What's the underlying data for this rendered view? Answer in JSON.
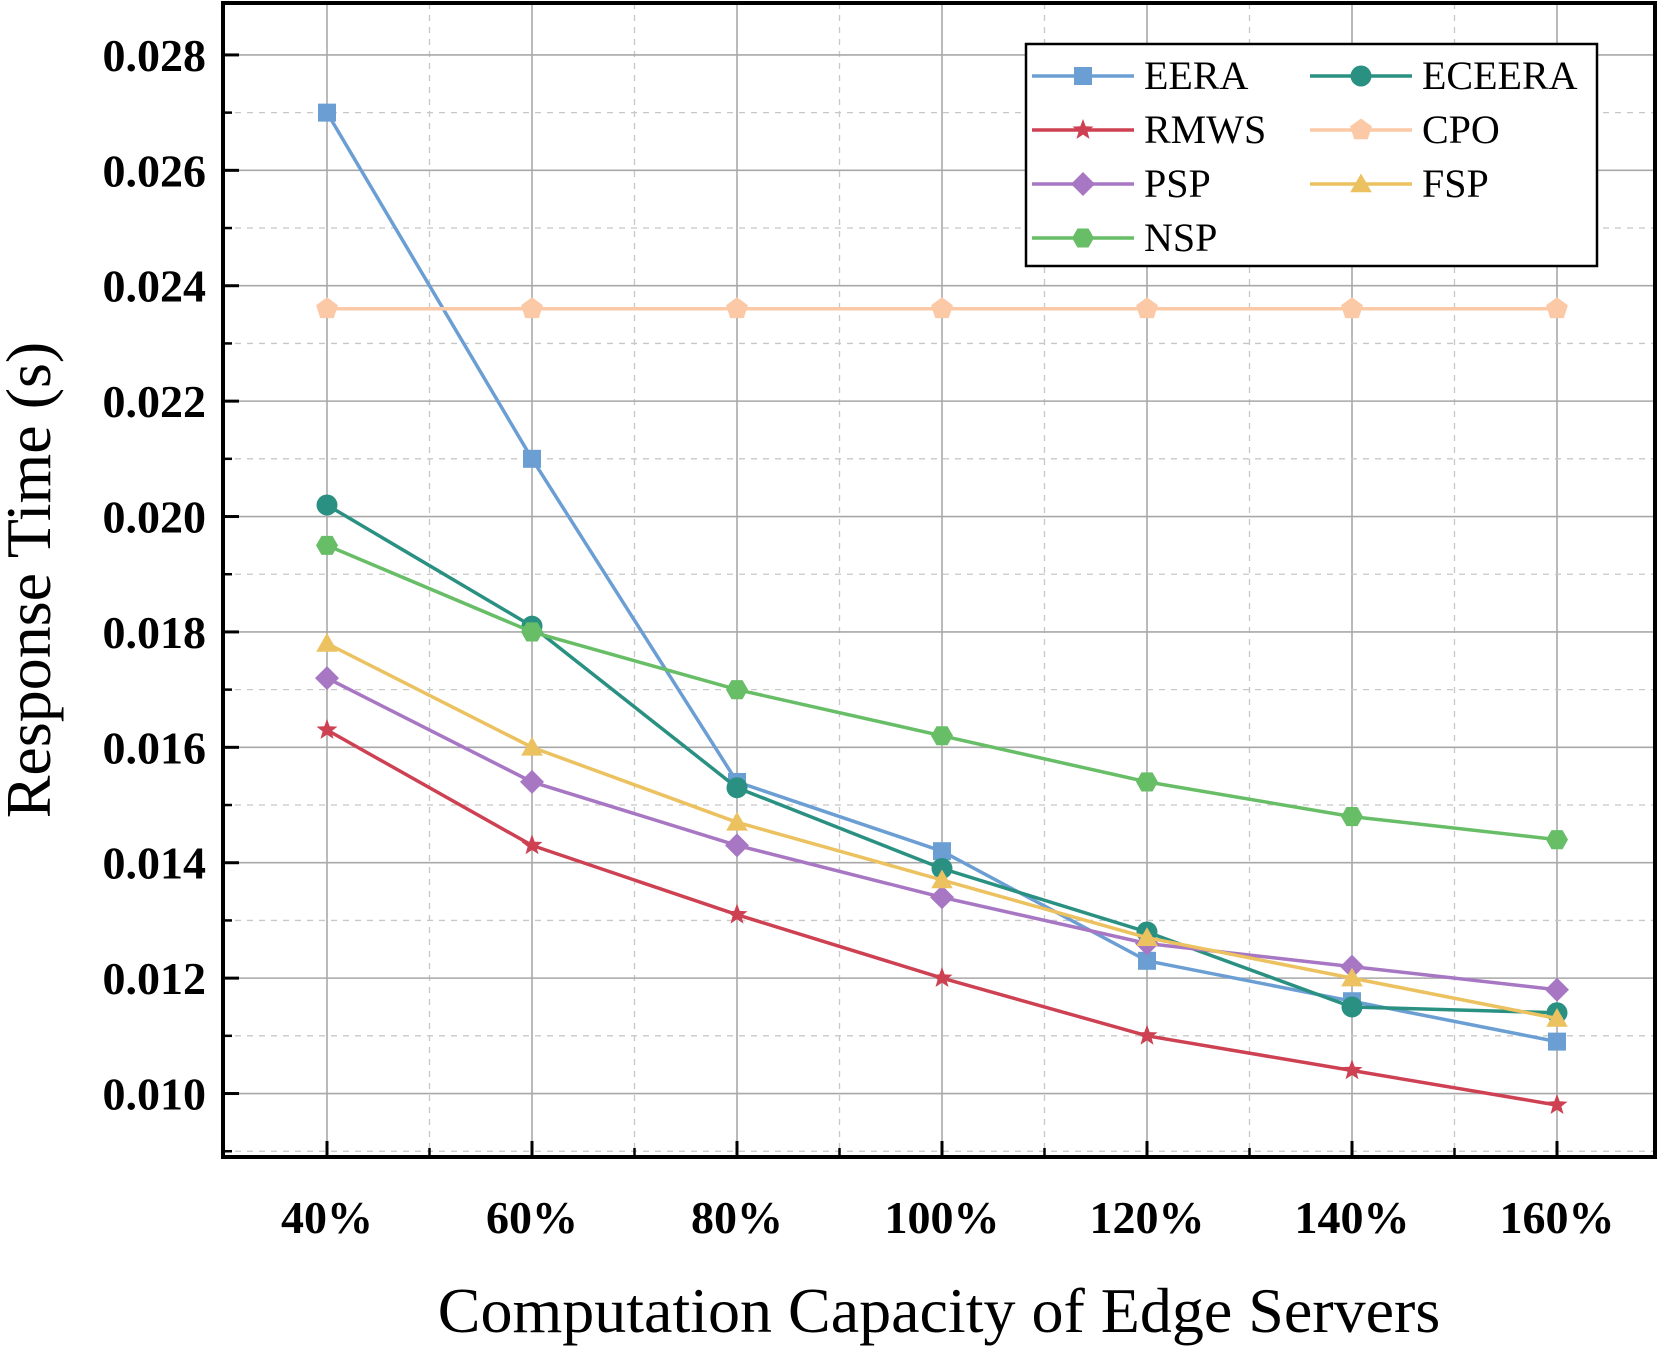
{
  "chart_data": {
    "type": "line",
    "title": "",
    "xlabel": "Computation Capacity of Edge Servers",
    "ylabel": "Response Time (s)",
    "categories": [
      "40%",
      "60%",
      "80%",
      "100%",
      "120%",
      "140%",
      "160%"
    ],
    "ylim": [
      0.0089,
      0.0289
    ],
    "yticks": [
      0.01,
      0.012,
      0.014,
      0.016,
      0.018,
      0.02,
      0.022,
      0.024,
      0.026,
      0.028
    ],
    "ytick_labels": [
      "0.010",
      "0.012",
      "0.014",
      "0.016",
      "0.018",
      "0.020",
      "0.022",
      "0.024",
      "0.026",
      "0.028"
    ],
    "grid": true,
    "legend_position": "top-right",
    "series": [
      {
        "name": "EERA",
        "color": "#6b9fd4",
        "marker": "square",
        "values": [
          0.027,
          0.021,
          0.0154,
          0.0142,
          0.0123,
          0.0116,
          0.0109
        ]
      },
      {
        "name": "ECEERA",
        "color": "#2a9182",
        "marker": "circle",
        "values": [
          0.0202,
          0.0181,
          0.0153,
          0.0139,
          0.0128,
          0.0115,
          0.0114
        ]
      },
      {
        "name": "RMWS",
        "color": "#cd4153",
        "marker": "star",
        "values": [
          0.0163,
          0.0143,
          0.0131,
          0.012,
          0.011,
          0.0104,
          0.0098
        ]
      },
      {
        "name": "CPO",
        "color": "#fcc9a6",
        "marker": "pentagon",
        "values": [
          0.0236,
          0.0236,
          0.0236,
          0.0236,
          0.0236,
          0.0236,
          0.0236
        ]
      },
      {
        "name": "PSP",
        "color": "#a777c4",
        "marker": "diamond",
        "values": [
          0.0172,
          0.0154,
          0.0143,
          0.0134,
          0.0126,
          0.0122,
          0.0118
        ]
      },
      {
        "name": "FSP",
        "color": "#ecc15f",
        "marker": "triangle",
        "values": [
          0.0178,
          0.016,
          0.0147,
          0.0137,
          0.0127,
          0.012,
          0.0113
        ]
      },
      {
        "name": "NSP",
        "color": "#67be67",
        "marker": "hexagon",
        "values": [
          0.0195,
          0.018,
          0.017,
          0.0162,
          0.0154,
          0.0148,
          0.0144
        ]
      }
    ]
  }
}
